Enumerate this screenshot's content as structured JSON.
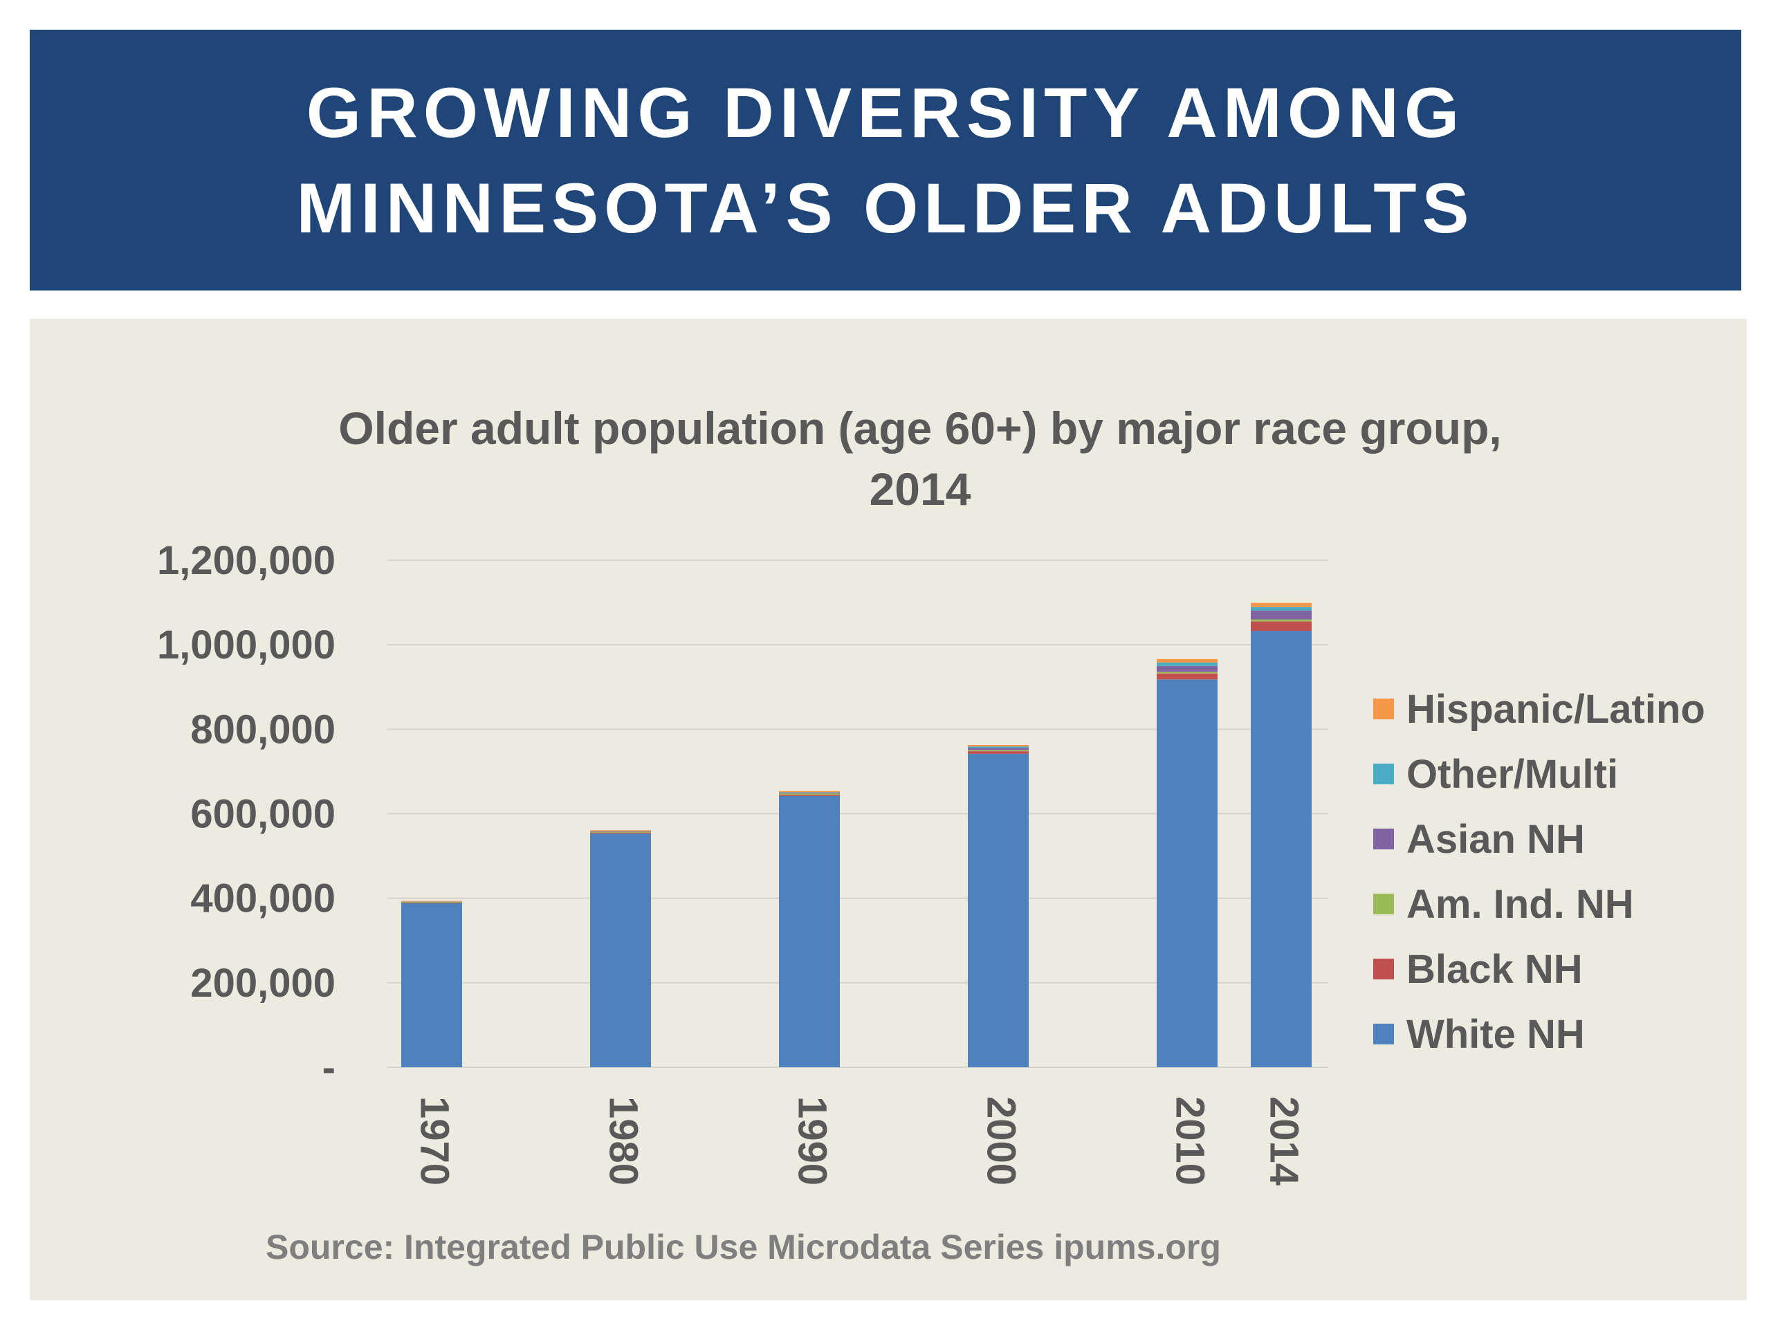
{
  "header": {
    "title_line1": "GROWING DIVERSITY AMONG",
    "title_line2": "MINNESOTA’S OLDER ADULTS"
  },
  "chart_data": {
    "type": "bar",
    "stacked": true,
    "title_line1": "Older adult population (age 60+) by major race group,",
    "title_line2": "2014",
    "xlabel": "",
    "ylabel": "",
    "ylim": [
      0,
      1200000
    ],
    "yticks": [
      0,
      200000,
      400000,
      600000,
      800000,
      1000000,
      1200000
    ],
    "ytick_labels": [
      "-",
      "200,000",
      "400,000",
      "600,000",
      "800,000",
      "1,000,000",
      "1,200,000"
    ],
    "grid": true,
    "legend_position": "right",
    "categories": [
      "1970",
      "1980",
      "1990",
      "2000",
      "2010",
      "2014"
    ],
    "series": [
      {
        "name": "White NH",
        "color": "#4f81bd",
        "values": [
          388000,
          553000,
          642000,
          742000,
          918000,
          1033000
        ]
      },
      {
        "name": "Black NH",
        "color": "#c0504d",
        "values": [
          1500,
          2500,
          3500,
          6000,
          14000,
          22000
        ]
      },
      {
        "name": "Am. Ind. NH",
        "color": "#9bbb59",
        "values": [
          1500,
          2000,
          2500,
          3000,
          4000,
          5000
        ]
      },
      {
        "name": "Asian NH",
        "color": "#8064a2",
        "values": [
          500,
          1000,
          2000,
          5000,
          14000,
          21000
        ]
      },
      {
        "name": "Other/Multi",
        "color": "#4bacc6",
        "values": [
          500,
          500,
          1000,
          3000,
          8000,
          8000
        ]
      },
      {
        "name": "Hispanic/Latino",
        "color": "#f79646",
        "values": [
          1500,
          2000,
          2500,
          4000,
          8000,
          10000
        ]
      }
    ],
    "legend_order": [
      "Hispanic/Latino",
      "Other/Multi",
      "Asian NH",
      "Am. Ind. NH",
      "Black NH",
      "White NH"
    ]
  },
  "footer": {
    "source": "Source: Integrated Public Use Microdata Series ipums.org"
  }
}
